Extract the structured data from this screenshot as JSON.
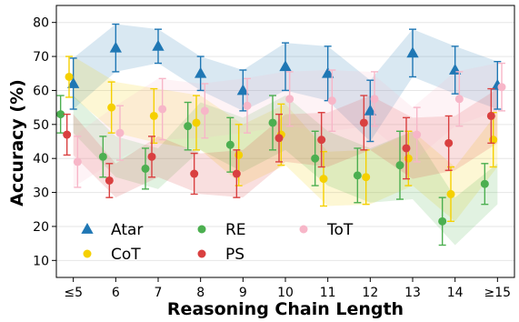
{
  "chart_data": {
    "type": "scatter",
    "xlabel": "Reasoning Chain Length",
    "ylabel": "Accuracy (%)",
    "categories": [
      "≤5",
      "6",
      "7",
      "8",
      "9",
      "10",
      "11",
      "12",
      "13",
      "14",
      "≥15"
    ],
    "ylim": [
      5,
      85
    ],
    "yticks": [
      10,
      20,
      30,
      40,
      50,
      60,
      70,
      80
    ],
    "grid": true,
    "legend_position": "bottom-left",
    "series": [
      {
        "name": "Atar",
        "color": "#1f77b4",
        "marker": "triangle",
        "offset": 0.0,
        "values": [
          62,
          72.5,
          73,
          65,
          60,
          67,
          65,
          54,
          71,
          66,
          61.5
        ],
        "err": [
          7.5,
          7,
          5,
          5,
          6,
          7,
          8,
          9,
          7,
          7,
          7
        ]
      },
      {
        "name": "CoT",
        "color": "#f5d000",
        "marker": "circle",
        "offset": -0.1,
        "values": [
          64,
          55,
          52.5,
          50.5,
          41,
          47,
          34,
          34.5,
          40,
          29.5,
          45.5
        ],
        "err": [
          6,
          7.5,
          8,
          8,
          9,
          9,
          8,
          8,
          8,
          8,
          8
        ]
      },
      {
        "name": "RE",
        "color": "#4caf50",
        "marker": "circle",
        "offset": -0.3,
        "values": [
          53,
          40.5,
          37,
          49.5,
          44,
          50.5,
          40,
          35,
          38,
          21.5,
          32.5
        ],
        "err": [
          5.5,
          6,
          6,
          7,
          8,
          8,
          8,
          8,
          10,
          7,
          6
        ]
      },
      {
        "name": "PS",
        "color": "#d94040",
        "marker": "circle",
        "offset": -0.15,
        "values": [
          47,
          33.5,
          40.5,
          35.5,
          35.5,
          46,
          45.5,
          50.5,
          43,
          44.5,
          52.5
        ],
        "err": [
          6,
          5,
          6,
          6,
          7,
          7,
          8,
          8,
          9,
          8,
          8
        ]
      },
      {
        "name": "ToT",
        "color": "#f7b6c8",
        "marker": "circle",
        "offset": 0.1,
        "values": [
          39,
          47.5,
          54.5,
          54,
          55.5,
          57.5,
          57,
          57.5,
          47,
          57.5,
          61
        ],
        "err": [
          7.5,
          8,
          9,
          8,
          8,
          8,
          9,
          8,
          8,
          8,
          7
        ]
      }
    ]
  }
}
